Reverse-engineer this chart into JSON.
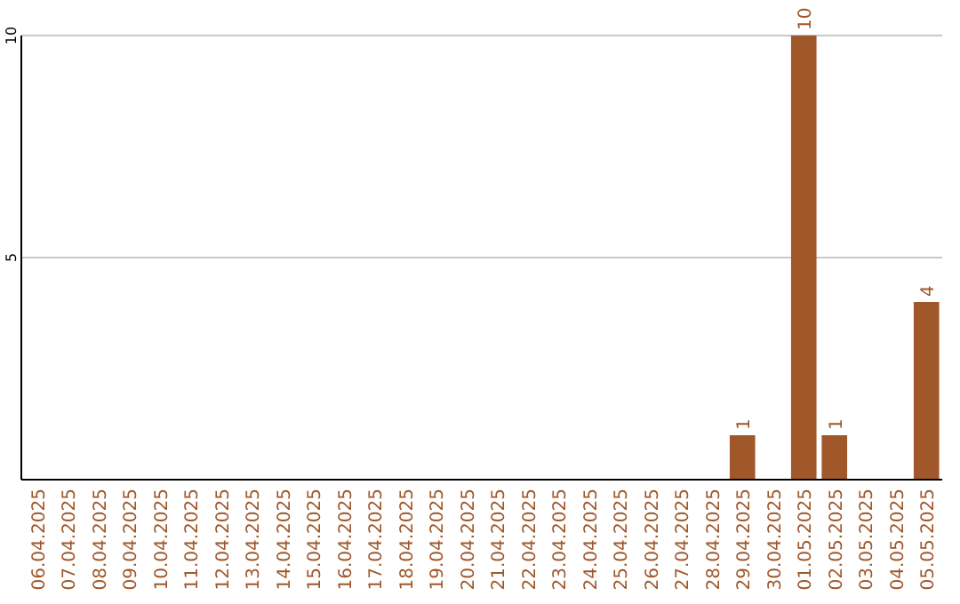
{
  "chart_data": {
    "type": "bar",
    "categories": [
      "06.04.2025",
      "07.04.2025",
      "08.04.2025",
      "09.04.2025",
      "10.04.2025",
      "11.04.2025",
      "12.04.2025",
      "13.04.2025",
      "14.04.2025",
      "15.04.2025",
      "16.04.2025",
      "17.04.2025",
      "18.04.2025",
      "19.04.2025",
      "20.04.2025",
      "21.04.2025",
      "22.04.2025",
      "23.04.2025",
      "24.04.2025",
      "25.04.2025",
      "26.04.2025",
      "27.04.2025",
      "28.04.2025",
      "29.04.2025",
      "30.04.2025",
      "01.05.2025",
      "02.05.2025",
      "03.05.2025",
      "04.05.2025",
      "05.05.2025"
    ],
    "values": [
      0,
      0,
      0,
      0,
      0,
      0,
      0,
      0,
      0,
      0,
      0,
      0,
      0,
      0,
      0,
      0,
      0,
      0,
      0,
      0,
      0,
      0,
      0,
      1,
      0,
      10,
      1,
      0,
      0,
      4
    ],
    "value_labels": [
      null,
      null,
      null,
      null,
      null,
      null,
      null,
      null,
      null,
      null,
      null,
      null,
      null,
      null,
      null,
      null,
      null,
      null,
      null,
      null,
      null,
      null,
      null,
      "1",
      null,
      "10",
      "1",
      null,
      null,
      "4"
    ],
    "color": "#a0572a",
    "ylim": [
      0,
      10
    ],
    "yticks": [
      5,
      10
    ],
    "grid": "y"
  }
}
